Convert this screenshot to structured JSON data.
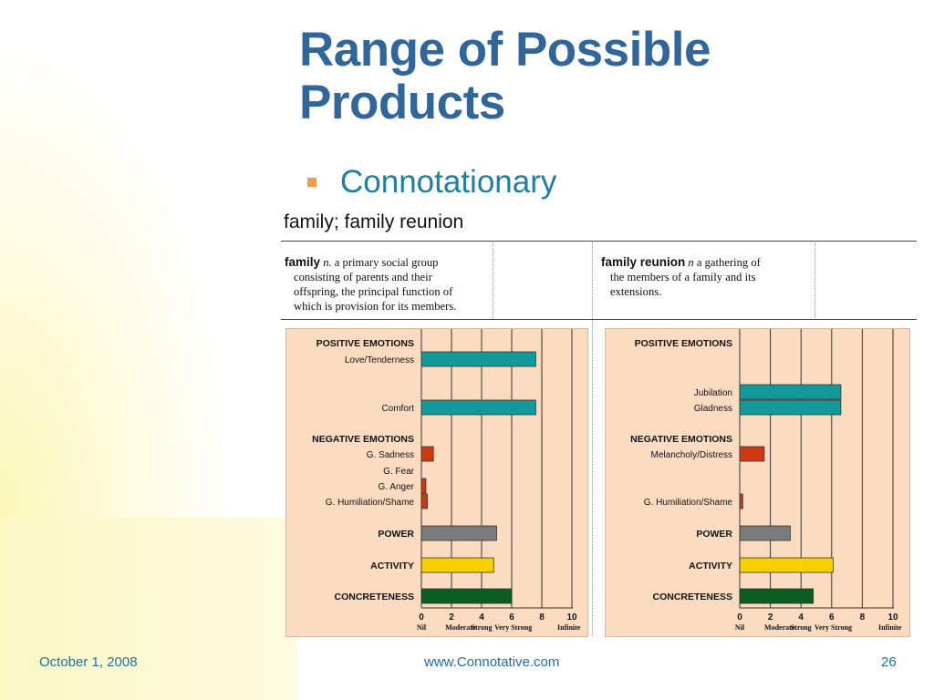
{
  "slide": {
    "title_line1": "Range of Possible",
    "title_line2": "Products",
    "bullet": "Connotationary",
    "figure_title": "family; family reunion",
    "footer_date": "October 1, 2008",
    "footer_url": "www.Connotative.com",
    "footer_page": "26"
  },
  "definitions": [
    {
      "headword": "family",
      "pos": "n.",
      "lines": [
        "a primary social group",
        "consisting of parents and their",
        "offspring, the principal function of",
        "which is provision for its members."
      ]
    },
    {
      "headword": "family reunion",
      "pos": "n",
      "lines": [
        "a gathering of",
        "the members of a family and its",
        "extensions."
      ]
    }
  ],
  "colors": {
    "title": "#31669b",
    "bullet": "#f29b45",
    "positive": "#13999b",
    "negative": "#cc3a12",
    "power": "#7a7a7a",
    "activity": "#f7d000",
    "concreteness": "#0b5e22",
    "chart_bg": "#fcdcc0"
  },
  "chart_data": [
    {
      "type": "bar",
      "orientation": "horizontal",
      "title": "family",
      "xlim": [
        0,
        10
      ],
      "xticks": [
        0,
        2,
        4,
        6,
        8,
        10
      ],
      "xtick_words": [
        "Nil",
        "Moderate",
        "Strong",
        "Very Strong",
        "Infinite"
      ],
      "rows": [
        {
          "label": "POSITIVE EMOTIONS",
          "header": true
        },
        {
          "label": "Love/Tenderness",
          "value": 7.6,
          "cat": "positive"
        },
        {
          "label": "",
          "spacer": true
        },
        {
          "label": "Comfort",
          "value": 7.6,
          "cat": "positive"
        },
        {
          "label": "NEGATIVE EMOTIONS",
          "header": true
        },
        {
          "label": "G. Sadness",
          "value": 0.8,
          "cat": "negative"
        },
        {
          "label": "G. Fear",
          "value": 0,
          "cat": "negative"
        },
        {
          "label": "G. Anger",
          "value": 0.3,
          "cat": "negative"
        },
        {
          "label": "G. Humiliation/Shame",
          "value": 0.4,
          "cat": "negative"
        },
        {
          "label": "POWER",
          "value": 5.0,
          "cat": "power",
          "header_bar": true
        },
        {
          "label": "ACTIVITY",
          "value": 4.8,
          "cat": "activity",
          "header_bar": true
        },
        {
          "label": "CONCRETENESS",
          "value": 6.0,
          "cat": "concreteness",
          "header_bar": true
        }
      ]
    },
    {
      "type": "bar",
      "orientation": "horizontal",
      "title": "family reunion",
      "xlim": [
        0,
        10
      ],
      "xticks": [
        0,
        2,
        4,
        6,
        8,
        10
      ],
      "xtick_words": [
        "Nil",
        "Moderate",
        "Strong",
        "Very Strong",
        "Infinite"
      ],
      "rows": [
        {
          "label": "POSITIVE EMOTIONS",
          "header": true
        },
        {
          "label": "",
          "spacer": true
        },
        {
          "label": "Jubilation",
          "value": 6.6,
          "cat": "positive"
        },
        {
          "label": "Gladness",
          "value": 6.6,
          "cat": "positive"
        },
        {
          "label": "NEGATIVE EMOTIONS",
          "header": true
        },
        {
          "label": "Melancholy/Distress",
          "value": 1.6,
          "cat": "negative"
        },
        {
          "label": "",
          "spacer": true
        },
        {
          "label": "",
          "spacer": true
        },
        {
          "label": "G. Humiliation/Shame",
          "value": 0.2,
          "cat": "negative"
        },
        {
          "label": "POWER",
          "value": 3.3,
          "cat": "power",
          "header_bar": true
        },
        {
          "label": "ACTIVITY",
          "value": 6.1,
          "cat": "activity",
          "header_bar": true
        },
        {
          "label": "CONCRETENESS",
          "value": 4.8,
          "cat": "concreteness",
          "header_bar": true
        }
      ]
    }
  ]
}
